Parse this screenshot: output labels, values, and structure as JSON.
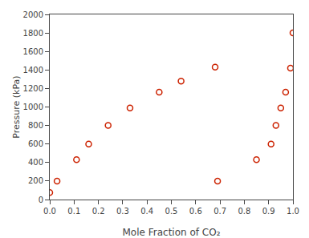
{
  "chart_data": {
    "type": "scatter",
    "x": [
      0.0,
      0.03,
      0.11,
      0.16,
      0.24,
      0.33,
      0.45,
      0.54,
      0.68,
      0.69,
      0.85,
      0.91,
      0.93,
      0.95,
      0.97,
      0.99,
      1.0
    ],
    "values": [
      75,
      200,
      430,
      600,
      800,
      990,
      1160,
      1280,
      1430,
      200,
      430,
      600,
      800,
      990,
      1160,
      1420,
      1800
    ],
    "color": "#cc2200",
    "marker": "circle-open",
    "xlabel": "Mole Fraction of CO₂",
    "ylabel": "Pressure (kPa)",
    "xlim": [
      0.0,
      1.0
    ],
    "ylim": [
      0,
      2000
    ],
    "xticks": [
      {
        "value": 0.0,
        "label": "0.0"
      },
      0.1,
      0.2,
      0.3,
      0.4,
      0.5,
      0.6,
      0.7,
      0.8,
      0.9,
      {
        "value": 1.0,
        "label": "1.0"
      }
    ],
    "yticks": [
      0,
      200,
      400,
      600,
      800,
      1000,
      1200,
      1400,
      1600,
      1800,
      2000
    ],
    "grid": false
  }
}
